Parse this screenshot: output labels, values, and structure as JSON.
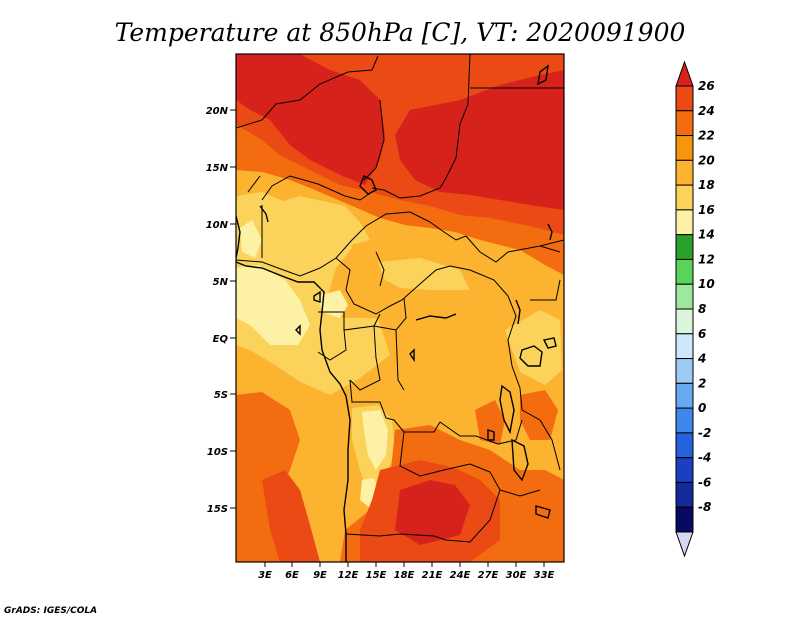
{
  "title": "Temperature at 850hPa [C], VT: 2020091900",
  "credit": "GrADS: IGES/COLA",
  "map": {
    "lat_labels": [
      "20N",
      "15N",
      "10N",
      "5N",
      "EQ",
      "5S",
      "10S",
      "15S"
    ],
    "lon_labels": [
      "3E",
      "6E",
      "9E",
      "12E",
      "15E",
      "18E",
      "21E",
      "24E",
      "27E",
      "30E",
      "33E"
    ]
  },
  "colorbar": {
    "labels": [
      "26",
      "24",
      "22",
      "20",
      "18",
      "16",
      "14",
      "12",
      "10",
      "8",
      "6",
      "4",
      "2",
      "0",
      "-2",
      "-4",
      "-6",
      "-8"
    ],
    "colors_top_to_bottom": [
      "#d7221c",
      "#eb4a14",
      "#f36d10",
      "#f9940e",
      "#fbb330",
      "#fcd35a",
      "#fdf1a6",
      "#2ca02c",
      "#59d359",
      "#9de89d",
      "#dbf5db",
      "#cfe7fb",
      "#9dcbf6",
      "#6aa9f1",
      "#4186eb",
      "#2463dd",
      "#1a40c0",
      "#122a9a",
      "#080a60",
      "#d8d8f4"
    ]
  }
}
